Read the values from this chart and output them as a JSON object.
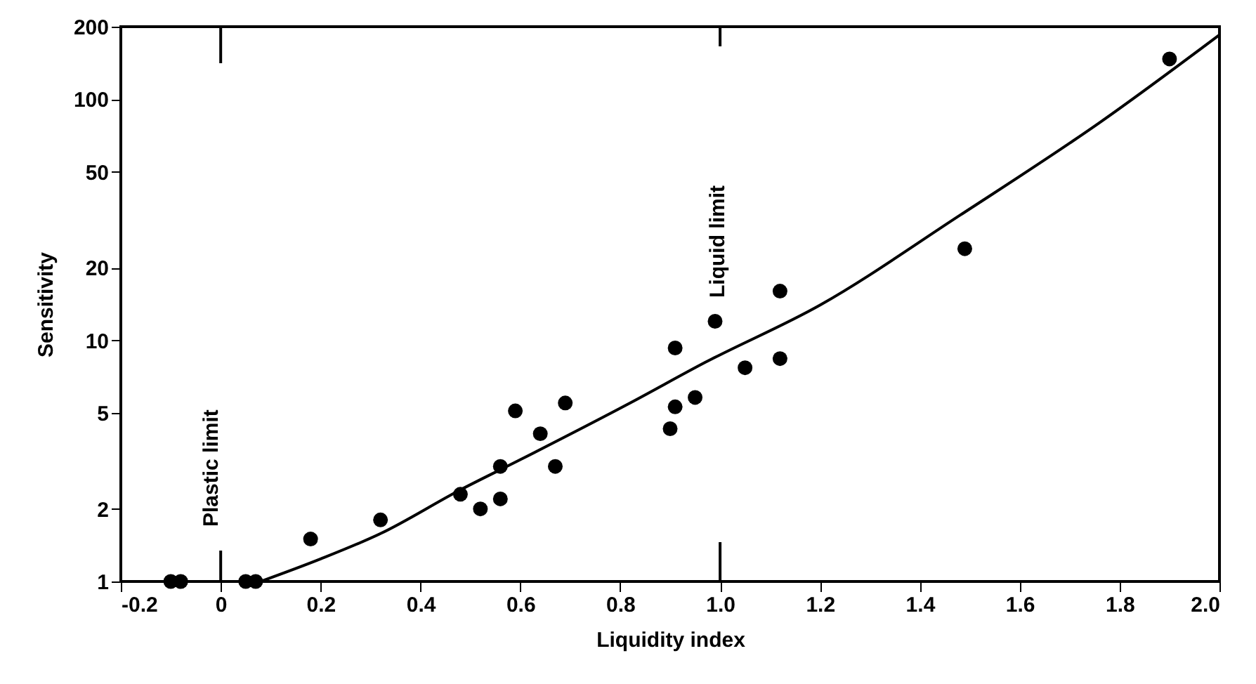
{
  "chart_data": {
    "type": "scatter",
    "xlabel": "Liquidity index",
    "ylabel": "Sensitivity",
    "log": "y",
    "grid": false,
    "line_style": "solid",
    "xlim": [
      -0.2,
      2.0
    ],
    "xticks": [
      -0.2,
      0,
      0.2,
      0.4,
      0.6,
      0.8,
      {
        "value": 1,
        "label": "1.0"
      },
      1.2,
      1.4,
      1.6,
      1.8,
      {
        "value": 2,
        "label": "2.0"
      }
    ],
    "ylim": [
      1,
      200
    ],
    "yticks": [
      1,
      2,
      5,
      10,
      20,
      50,
      100,
      200
    ],
    "series": [
      {
        "marker": "circle",
        "color": "#000000",
        "x": [
          -0.1,
          -0.08,
          0.05,
          0.07,
          0.18,
          0.32,
          0.48,
          0.52,
          0.56,
          0.56,
          0.59,
          0.64,
          0.67,
          0.69,
          0.9,
          0.91,
          0.91,
          0.95,
          0.99,
          1.05,
          1.12,
          1.12,
          1.49,
          1.9
        ],
        "values": [
          1.0,
          1.0,
          1.0,
          1.0,
          1.5,
          1.8,
          2.3,
          2.0,
          2.2,
          3.0,
          5.1,
          4.1,
          3.0,
          5.5,
          4.3,
          5.3,
          9.3,
          5.8,
          12,
          7.7,
          16,
          8.4,
          24,
          147
        ]
      },
      {
        "type": "line",
        "color": "#000000",
        "x": [
          0.08,
          0.2,
          0.32,
          0.48,
          0.6,
          0.82,
          0.97,
          1.2,
          1.48,
          1.76,
          2.0
        ],
        "values": [
          1,
          1.24,
          1.58,
          2.4,
          3.2,
          5.5,
          8.1,
          14,
          33,
          80,
          185
        ]
      }
    ],
    "ref_lines": [
      {
        "axis": "x",
        "value": 0,
        "label": "Plastic limit"
      },
      {
        "axis": "x",
        "value": 1,
        "label": "Liquid limit"
      }
    ]
  }
}
